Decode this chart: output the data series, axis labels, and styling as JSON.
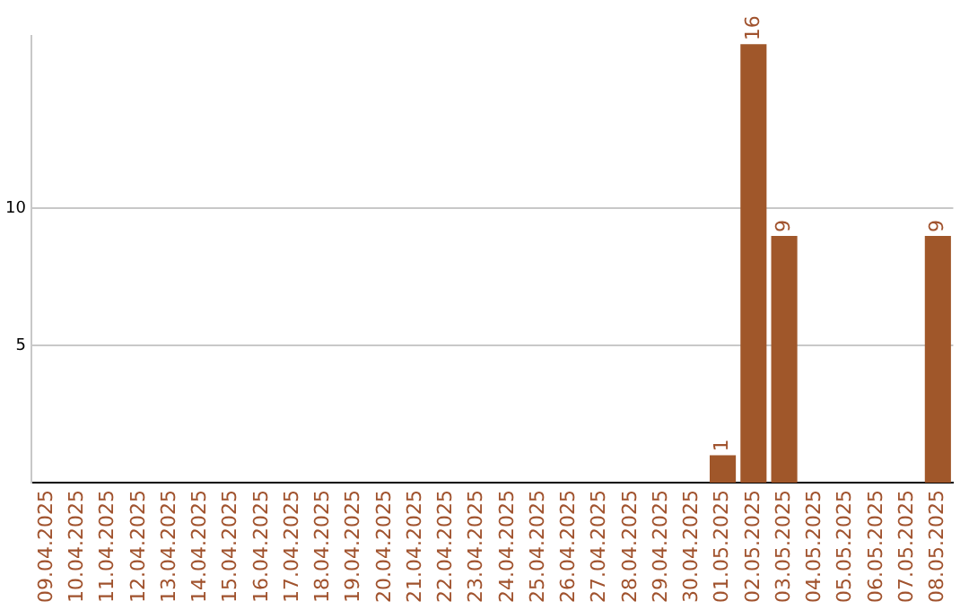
{
  "chart_data": {
    "type": "bar",
    "categories": [
      "09.04.2025",
      "10.04.2025",
      "11.04.2025",
      "12.04.2025",
      "13.04.2025",
      "14.04.2025",
      "15.04.2025",
      "16.04.2025",
      "17.04.2025",
      "18.04.2025",
      "19.04.2025",
      "20.04.2025",
      "21.04.2025",
      "22.04.2025",
      "23.04.2025",
      "24.04.2025",
      "25.04.2025",
      "26.04.2025",
      "27.04.2025",
      "28.04.2025",
      "29.04.2025",
      "30.04.2025",
      "01.05.2025",
      "02.05.2025",
      "03.05.2025",
      "04.05.2025",
      "05.05.2025",
      "06.05.2025",
      "07.05.2025",
      "08.05.2025"
    ],
    "values": [
      null,
      null,
      null,
      null,
      null,
      null,
      null,
      null,
      null,
      null,
      null,
      null,
      null,
      null,
      null,
      null,
      null,
      null,
      null,
      null,
      null,
      null,
      1,
      16,
      9,
      null,
      null,
      null,
      null,
      9
    ],
    "color": "#a0572a",
    "ylim": [
      0,
      16.3
    ],
    "yticks": [
      5,
      10
    ],
    "grid": "y",
    "data_labels": true,
    "legend": false
  }
}
